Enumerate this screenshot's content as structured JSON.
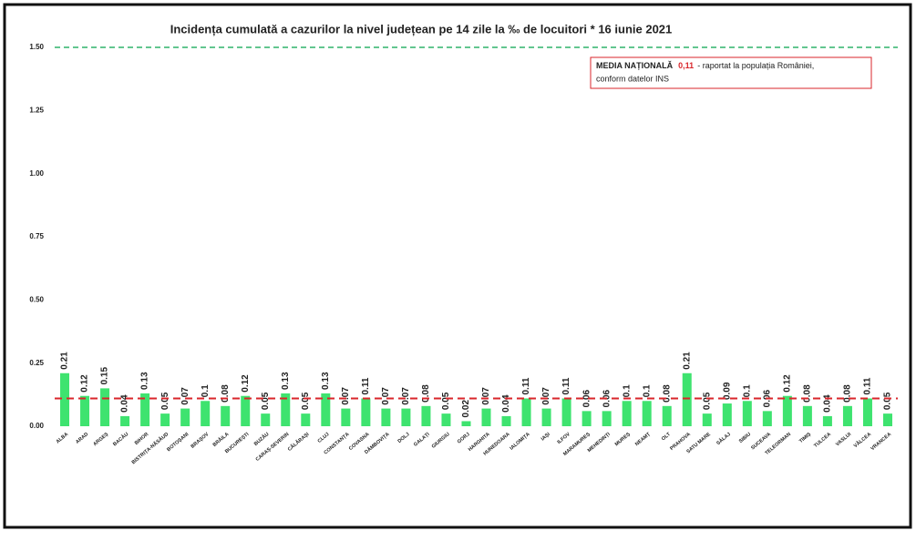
{
  "chart_data": {
    "type": "bar",
    "title": "Incidența cumulată a cazurilor la nivel județean pe 14 zile la ‰ de locuitori *  16 iunie 2021",
    "categories": [
      "ALBA",
      "ARAD",
      "ARGEȘ",
      "BACĂU",
      "BIHOR",
      "BISTRIȚA-NĂSĂUD",
      "BOTOȘANI",
      "BRAȘOV",
      "BRĂILA",
      "BUCUREȘTI",
      "BUZĂU",
      "CARAȘ-SEVERIN",
      "CĂLĂRAȘI",
      "CLUJ",
      "CONSTANȚA",
      "COVASNA",
      "DÂMBOVIȚA",
      "DOLJ",
      "GALAȚI",
      "GIURGIU",
      "GORJ",
      "HARGHITA",
      "HUNEDOARA",
      "IALOMIȚA",
      "IAȘI",
      "ILFOV",
      "MARAMUREȘ",
      "MEHEDINȚI",
      "MUREȘ",
      "NEAMȚ",
      "OLT",
      "PRAHOVA",
      "SATU MARE",
      "SĂLAJ",
      "SIBIU",
      "SUCEAVA",
      "TELEORMAN",
      "TIMIȘ",
      "TULCEA",
      "VASLUI",
      "VÂLCEA",
      "VRANCEA"
    ],
    "values": [
      0.21,
      0.12,
      0.15,
      0.04,
      0.13,
      0.05,
      0.07,
      0.1,
      0.08,
      0.12,
      0.05,
      0.13,
      0.05,
      0.13,
      0.07,
      0.11,
      0.07,
      0.07,
      0.08,
      0.05,
      0.02,
      0.07,
      0.04,
      0.11,
      0.07,
      0.11,
      0.06,
      0.06,
      0.1,
      0.1,
      0.08,
      0.21,
      0.05,
      0.09,
      0.1,
      0.06,
      0.12,
      0.08,
      0.04,
      0.08,
      0.11,
      0.05
    ],
    "color": "#3ee36f",
    "ylim": [
      0,
      1.5
    ],
    "yticks": [
      {
        "value": 0,
        "label": "0.00"
      },
      {
        "value": 0.25,
        "label": "0.25"
      },
      {
        "value": 0.5,
        "label": "0.50"
      },
      {
        "value": 0.75,
        "label": "0.75"
      },
      {
        "value": 1,
        "label": "1.00"
      },
      {
        "value": 1.25,
        "label": "1.25"
      },
      {
        "value": 1.5,
        "label": "1.50"
      }
    ],
    "grid": false,
    "threshold": {
      "value": 1.5,
      "color": "#2fb36a"
    },
    "average": {
      "value": 0.11,
      "label": "0,11",
      "title": "MEDIA NAȚIONALĂ",
      "note_lines": [
        "- raportat la populația României,",
        "conform datelor INS"
      ],
      "color": "#d9262b"
    }
  }
}
